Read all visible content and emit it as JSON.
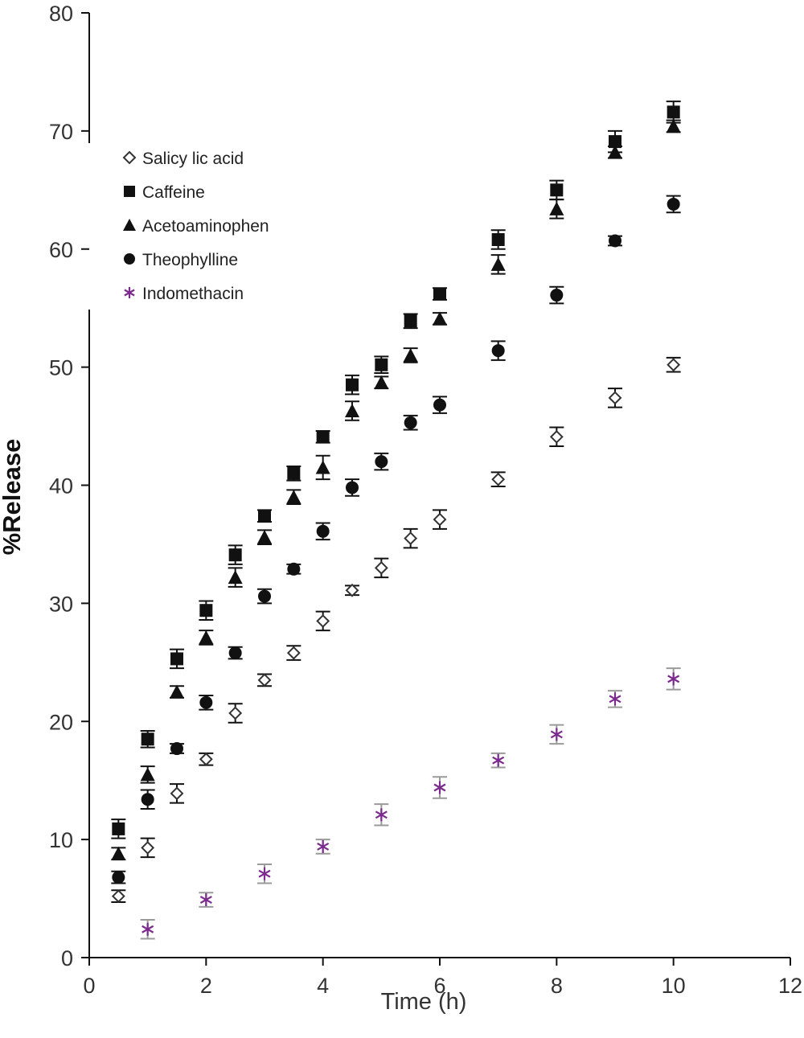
{
  "chart_data": {
    "type": "scatter",
    "title": "",
    "xlabel": "Time (h)",
    "ylabel": "%Release",
    "xlim": [
      0,
      12
    ],
    "ylim": [
      0,
      80
    ],
    "xticks": [
      0,
      2,
      4,
      6,
      8,
      10,
      12
    ],
    "yticks": [
      0,
      10,
      20,
      30,
      40,
      50,
      60,
      70,
      80
    ],
    "grid": false,
    "legend_position": "top-left",
    "series": [
      {
        "name": "Salicy lic acid",
        "marker": "open-diamond",
        "color": "#333333",
        "x": [
          0.5,
          1,
          1.5,
          2,
          2.5,
          3,
          3.5,
          4,
          4.5,
          5,
          5.5,
          6,
          7,
          8,
          9,
          10
        ],
        "y": [
          5.2,
          9.3,
          13.9,
          16.8,
          20.7,
          23.5,
          25.8,
          28.5,
          31.1,
          33.0,
          35.5,
          37.1,
          40.5,
          44.1,
          47.4,
          50.2
        ],
        "err": [
          0.5,
          0.8,
          0.8,
          0.5,
          0.8,
          0.5,
          0.6,
          0.8,
          0.4,
          0.8,
          0.8,
          0.8,
          0.6,
          0.8,
          0.8,
          0.6
        ]
      },
      {
        "name": "Caffeine",
        "marker": "square",
        "color": "#111111",
        "x": [
          0.5,
          1,
          1.5,
          2,
          2.5,
          3,
          3.5,
          4,
          4.5,
          5,
          5.5,
          6,
          7,
          8,
          9,
          10
        ],
        "y": [
          10.9,
          18.5,
          25.3,
          29.4,
          34.1,
          37.4,
          41.0,
          44.1,
          48.5,
          50.2,
          53.9,
          56.2,
          60.8,
          65.0,
          69.1,
          71.6
        ],
        "err": [
          0.8,
          0.7,
          0.8,
          0.8,
          0.8,
          0.5,
          0.6,
          0.5,
          0.8,
          0.7,
          0.6,
          0.5,
          0.8,
          0.8,
          0.9,
          0.9
        ]
      },
      {
        "name": "Acetoaminophen",
        "marker": "triangle",
        "color": "#111111",
        "x": [
          0.5,
          1,
          1.5,
          2,
          2.5,
          3,
          3.5,
          4,
          4.5,
          5,
          5.5,
          6,
          7,
          8,
          9,
          10
        ],
        "y": [
          8.8,
          15.5,
          22.5,
          27.1,
          32.2,
          35.6,
          39.0,
          41.5,
          46.3,
          48.7,
          51.0,
          54.1,
          58.7,
          63.4,
          68.2,
          70.4
        ],
        "err": [
          0.5,
          0.7,
          0.5,
          0.6,
          0.8,
          0.6,
          0.6,
          1.0,
          0.8,
          0.5,
          0.6,
          0.5,
          0.8,
          0.8,
          0.5,
          0.5
        ]
      },
      {
        "name": "Theophylline",
        "marker": "circle",
        "color": "#111111",
        "x": [
          0.5,
          1,
          1.5,
          2,
          2.5,
          3,
          3.5,
          4,
          4.5,
          5,
          5.5,
          6,
          7,
          8,
          9,
          10
        ],
        "y": [
          6.8,
          13.4,
          17.7,
          21.6,
          25.8,
          30.6,
          32.9,
          36.1,
          39.8,
          42.0,
          45.3,
          46.8,
          51.4,
          56.1,
          60.7,
          63.8
        ],
        "err": [
          0.5,
          0.8,
          0.4,
          0.6,
          0.5,
          0.6,
          0.4,
          0.7,
          0.7,
          0.7,
          0.6,
          0.7,
          0.8,
          0.7,
          0.4,
          0.7
        ]
      },
      {
        "name": "Indomethacin",
        "marker": "asterisk",
        "color": "#7b2a8e",
        "x": [
          1,
          2,
          3,
          4,
          5,
          6,
          7,
          8,
          9,
          10
        ],
        "y": [
          2.4,
          4.9,
          7.1,
          9.4,
          12.1,
          14.4,
          16.7,
          18.9,
          21.9,
          23.6
        ],
        "err": [
          0.8,
          0.6,
          0.8,
          0.6,
          0.9,
          0.9,
          0.6,
          0.8,
          0.7,
          0.9
        ]
      }
    ]
  }
}
